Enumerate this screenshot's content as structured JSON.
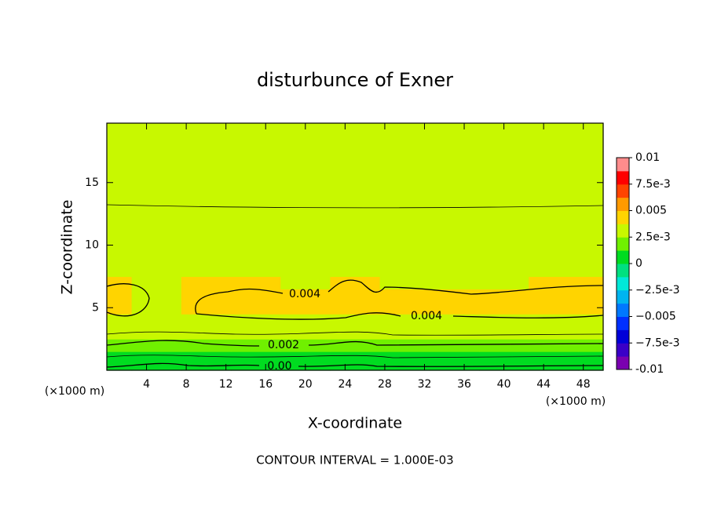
{
  "chart_data": {
    "type": "contour",
    "title": "disturbunce of Exner",
    "xlabel": "X-coordinate",
    "ylabel": "Z-coordinate",
    "x_unit_label": "(×1000 m)",
    "footer": "CONTOUR INTERVAL = 1.000E-03",
    "xlim": [
      0,
      50
    ],
    "ylim": [
      0,
      19.75
    ],
    "xticks": [
      4,
      8,
      12,
      16,
      20,
      24,
      28,
      32,
      36,
      40,
      44,
      48
    ],
    "yticks": [
      5,
      10,
      15
    ],
    "x": [
      0,
      5,
      10,
      15,
      20,
      25,
      30,
      35,
      40,
      45,
      50
    ],
    "y": [
      0,
      1,
      2,
      3,
      4,
      5,
      6,
      7,
      8,
      9,
      10,
      11,
      12,
      13,
      14,
      15,
      16,
      17,
      18,
      19
    ],
    "z": [
      [
        0.0002,
        0.0004,
        0.0002,
        0.0004,
        0.0002,
        0.0003,
        0.0002,
        0.0002,
        0.0002,
        0.0002,
        0.0002
      ],
      [
        0.0008,
        0.001,
        0.0008,
        0.001,
        0.0008,
        0.0009,
        0.0008,
        0.0008,
        0.0008,
        0.0008,
        0.0008
      ],
      [
        0.0015,
        0.0019,
        0.0016,
        0.0017,
        0.0015,
        0.0019,
        0.0016,
        0.0016,
        0.0016,
        0.0016,
        0.0016
      ],
      [
        0.0025,
        0.003,
        0.0027,
        0.0026,
        0.0026,
        0.003,
        0.0027,
        0.0026,
        0.0026,
        0.0026,
        0.0026
      ],
      [
        0.0036,
        0.0035,
        0.0036,
        0.0036,
        0.0036,
        0.0036,
        0.0036,
        0.0036,
        0.0036,
        0.0036,
        0.0036
      ],
      [
        0.0042,
        0.0037,
        0.0043,
        0.0043,
        0.0043,
        0.0043,
        0.0043,
        0.0043,
        0.0043,
        0.0043,
        0.0043
      ],
      [
        0.0042,
        0.0037,
        0.0044,
        0.0044,
        0.0044,
        0.0044,
        0.0044,
        0.0044,
        0.0044,
        0.0044,
        0.0044
      ],
      [
        0.004,
        0.0036,
        0.0038,
        0.0038,
        0.0037,
        0.0038,
        0.0037,
        0.0037,
        0.0037,
        0.0038,
        0.0038
      ],
      [
        0.0037,
        0.0036,
        0.0037,
        0.0036,
        0.0036,
        0.0037,
        0.0036,
        0.0036,
        0.0036,
        0.0036,
        0.0036
      ],
      [
        0.0036,
        0.0035,
        0.0036,
        0.0035,
        0.0035,
        0.0035,
        0.0035,
        0.0035,
        0.0035,
        0.0035,
        0.0035
      ],
      [
        0.0034,
        0.0034,
        0.0034,
        0.0033,
        0.0034,
        0.0034,
        0.0034,
        0.0034,
        0.0034,
        0.0034,
        0.0034
      ],
      [
        0.0033,
        0.0033,
        0.0033,
        0.0032,
        0.0033,
        0.0033,
        0.0033,
        0.0033,
        0.0033,
        0.0033,
        0.0033
      ],
      [
        0.0032,
        0.0032,
        0.0032,
        0.0032,
        0.0032,
        0.0032,
        0.0032,
        0.0032,
        0.0032,
        0.0032,
        0.0032
      ],
      [
        0.003,
        0.003,
        0.003,
        0.003,
        0.003,
        0.003,
        0.003,
        0.003,
        0.003,
        0.003,
        0.003
      ],
      [
        0.0029,
        0.0029,
        0.0029,
        0.0029,
        0.0029,
        0.0029,
        0.0029,
        0.0029,
        0.0029,
        0.0029,
        0.0029
      ],
      [
        0.0028,
        0.0028,
        0.0028,
        0.0028,
        0.0028,
        0.0028,
        0.0028,
        0.0028,
        0.0028,
        0.0028,
        0.0028
      ],
      [
        0.0028,
        0.0028,
        0.0028,
        0.0028,
        0.0028,
        0.0028,
        0.0028,
        0.0028,
        0.0027,
        0.0027,
        0.0027
      ],
      [
        0.0027,
        0.0027,
        0.0027,
        0.0027,
        0.0027,
        0.0027,
        0.0027,
        0.0026,
        0.0026,
        0.0026,
        0.0026
      ],
      [
        0.0027,
        0.0027,
        0.0027,
        0.0027,
        0.0027,
        0.0027,
        0.0026,
        0.0026,
        0.0026,
        0.0026,
        0.0026
      ],
      [
        0.0026,
        0.0026,
        0.0026,
        0.0026,
        0.0026,
        0.0026,
        0.0026,
        0.0025,
        0.0025,
        0.0025,
        0.0025
      ]
    ],
    "colorbar": {
      "levels": [
        -0.01,
        -0.00875,
        -0.0075,
        -0.00625,
        -0.005,
        -0.00375,
        -0.0025,
        -0.00125,
        0,
        0.00125,
        0.0025,
        0.00375,
        0.005,
        0.00625,
        0.0075,
        0.00875,
        0.01
      ],
      "colors": [
        "#7a00b0",
        "#3a00c8",
        "#0000d8",
        "#0030ff",
        "#0078ff",
        "#00b4f0",
        "#00e8d8",
        "#00e080",
        "#00dc20",
        "#70f000",
        "#c8f800",
        "#ffd400",
        "#ff9a00",
        "#ff4400",
        "#ff0000",
        "#ff8c8c"
      ],
      "ticks": [
        -0.01,
        {
          "value": -0.0075,
          "label": "−7.5e-3"
        },
        {
          "value": -0.005,
          "label": "−0.005"
        },
        {
          "value": -0.0025,
          "label": "−2.5e-3"
        },
        0,
        {
          "value": 0.0025,
          "label": "2.5e-3"
        },
        0.005,
        {
          "value": 0.0075,
          "label": "7.5e-3"
        },
        0.01
      ]
    },
    "contour_labels": [
      {
        "value": 0.004,
        "label": "0.004"
      },
      {
        "value": 0.004,
        "label": "0.004"
      },
      {
        "value": 0.002,
        "label": "0.002"
      },
      {
        "value": 0,
        "label": "0.00"
      }
    ]
  }
}
